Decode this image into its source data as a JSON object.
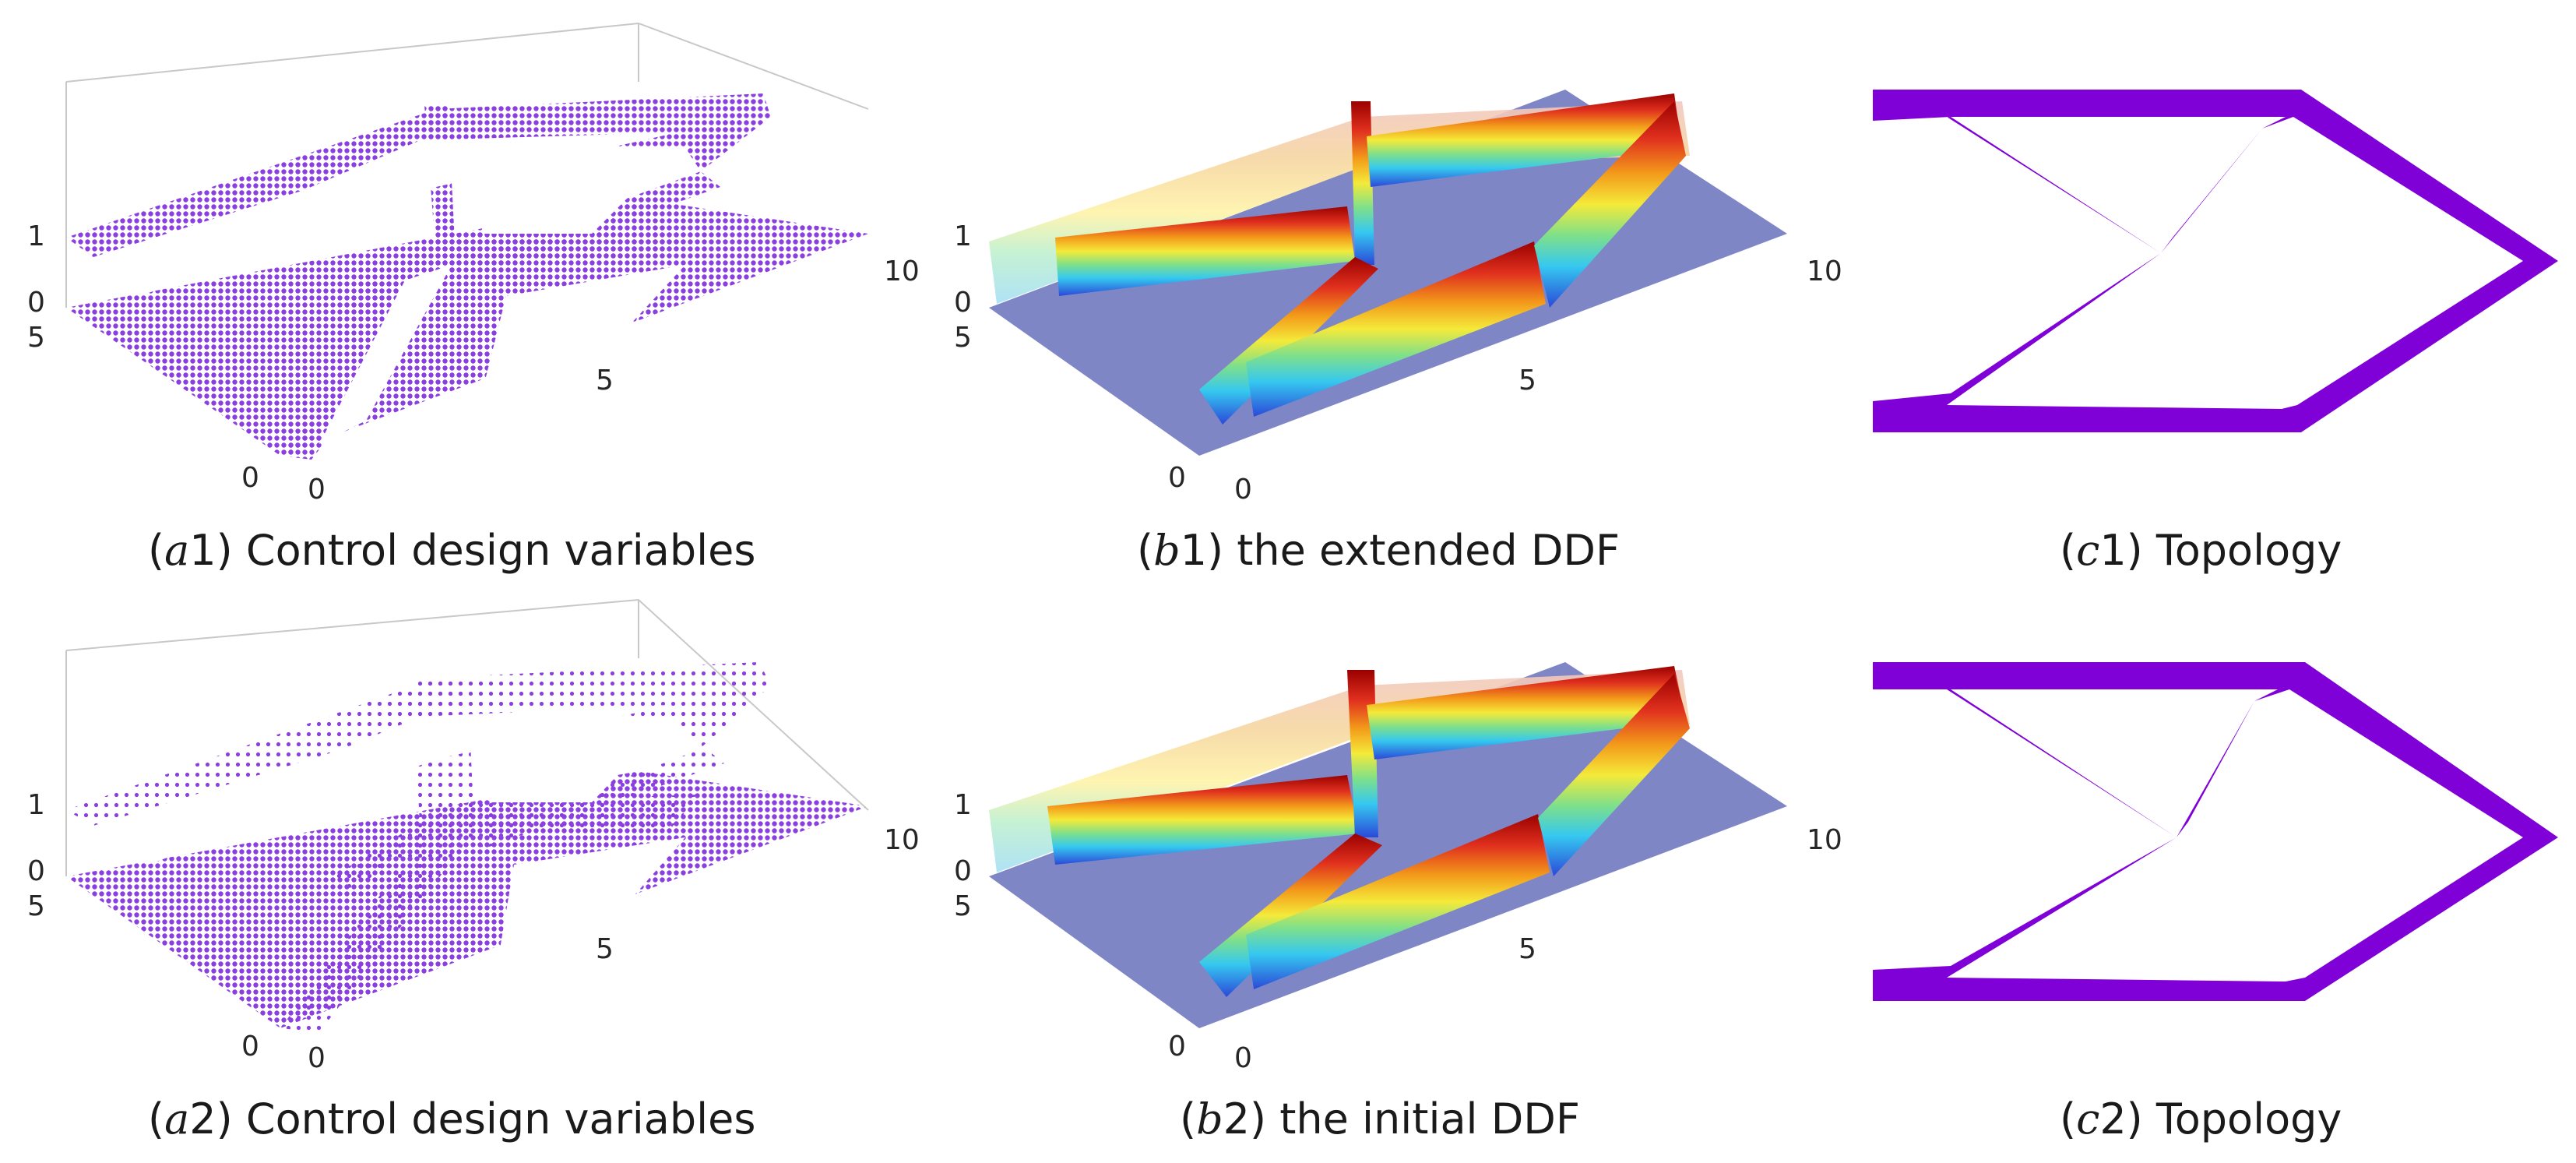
{
  "colors": {
    "purple_points": "#8c3fe0",
    "purple_topology": "#8000d8",
    "ddf_base": "#7f86c6"
  },
  "panels": [
    {
      "id": "a1",
      "caption_prefix": "(",
      "caption_letter": "a",
      "caption_number": "1)",
      "caption_text": " Control design variables",
      "ticks": {
        "z_top": "1",
        "z_bottom": "0",
        "y_max": "5",
        "x_mid": "5",
        "x_max": "10",
        "origin_y": "0",
        "origin_x": "0"
      }
    },
    {
      "id": "b1",
      "caption_prefix": "(",
      "caption_letter": "b",
      "caption_number": "1)",
      "caption_text": " the extended DDF",
      "ticks": {
        "z_top": "1",
        "z_bottom": "0",
        "y_max": "5",
        "x_mid": "5",
        "x_max": "10",
        "origin_y": "0",
        "origin_x": "0"
      }
    },
    {
      "id": "c1",
      "caption_prefix": "(",
      "caption_letter": "c",
      "caption_number": "1)",
      "caption_text": " Topology"
    },
    {
      "id": "a2",
      "caption_prefix": "(",
      "caption_letter": "a",
      "caption_number": "2)",
      "caption_text": " Control design variables",
      "ticks": {
        "z_top": "1",
        "z_bottom": "0",
        "y_max": "5",
        "x_mid": "5",
        "x_max": "10",
        "origin_y": "0",
        "origin_x": "0"
      }
    },
    {
      "id": "b2",
      "caption_prefix": "(",
      "caption_letter": "b",
      "caption_number": "2)",
      "caption_text": " the initial DDF",
      "ticks": {
        "z_top": "1",
        "z_bottom": "0",
        "y_max": "5",
        "x_mid": "5",
        "x_max": "10",
        "origin_y": "0",
        "origin_x": "0"
      }
    },
    {
      "id": "c2",
      "caption_prefix": "(",
      "caption_letter": "c",
      "caption_number": "2)",
      "caption_text": " Topology"
    }
  ]
}
